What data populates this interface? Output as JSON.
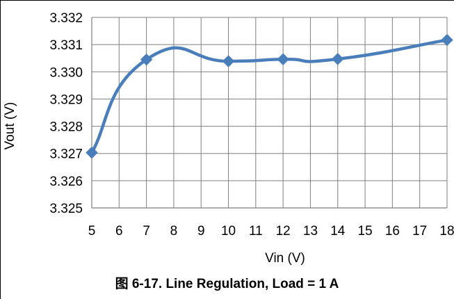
{
  "chart_data": {
    "type": "line",
    "title": "",
    "xlabel": "Vin (V)",
    "ylabel": "Vout (V)",
    "xlim": [
      5,
      18
    ],
    "ylim": [
      3.325,
      3.332
    ],
    "x_ticks": [
      5,
      6,
      7,
      8,
      9,
      10,
      11,
      12,
      13,
      14,
      15,
      16,
      17,
      18
    ],
    "y_ticks": [
      "3.325",
      "3.326",
      "3.327",
      "3.328",
      "3.329",
      "3.330",
      "3.331",
      "3.332"
    ],
    "grid": true,
    "legend": "none",
    "series": [
      {
        "color": "#4a7ebb",
        "smooth": true,
        "marker": "diamond",
        "x": [
          5,
          7,
          10,
          12,
          14,
          18
        ],
        "y": [
          3.32703,
          3.33045,
          3.33039,
          3.33046,
          3.33047,
          3.33117
        ]
      }
    ]
  },
  "caption": "图 6-17. Line Regulation, Load = 1 A",
  "colors": {
    "grid": "#7f7f7f",
    "axis": "#7f7f7f",
    "series": "#4a7ebb"
  }
}
